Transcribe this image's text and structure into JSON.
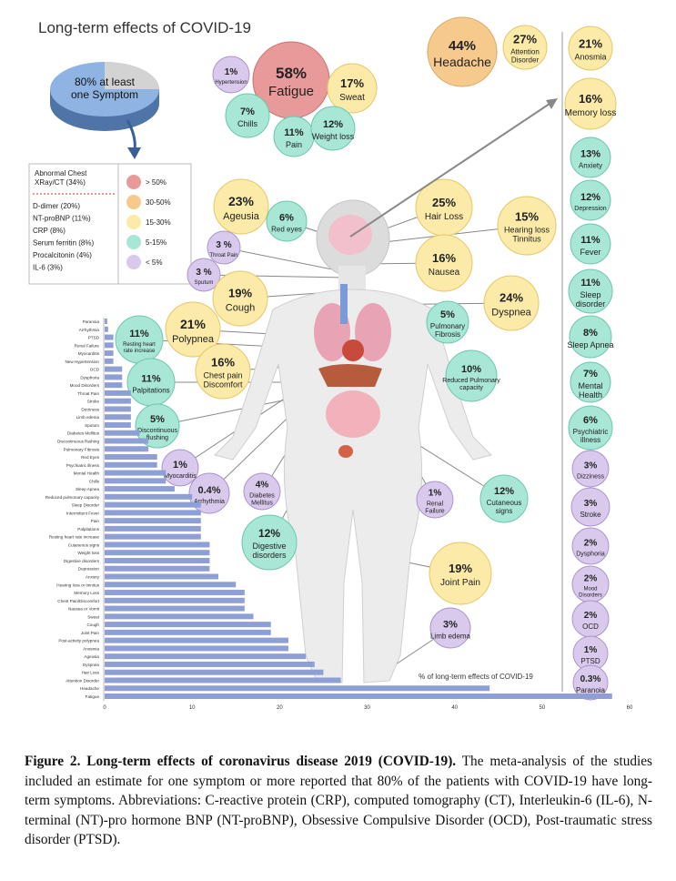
{
  "title": "Long-term effects of COVID-19",
  "pie": {
    "label": "80% at least one Symptom",
    "value": 80
  },
  "legend": {
    "lab_title": "Abnormal Chest XRay/CT (34%)",
    "lab_items": [
      "D-dimer (20%)",
      "NT-proBNP (11%)",
      "CRP (8%)",
      "Serum ferritin (8%)",
      "Procalcitonin (4%)",
      "IL-6 (3%)"
    ],
    "bins": [
      {
        "label": "> 50%",
        "color": "#e89a9a"
      },
      {
        "label": "30-50%",
        "color": "#f6c98c"
      },
      {
        "label": "15-30%",
        "color": "#fbeaa8"
      },
      {
        "label": "5-15%",
        "color": "#a8e6d6"
      },
      {
        "label": "< 5%",
        "color": "#d9c9ec"
      }
    ]
  },
  "bubbles": [
    {
      "pct": "44%",
      "label": "Headache"
    },
    {
      "pct": "27%",
      "label": "Attention Disorder"
    },
    {
      "pct": "21%",
      "label": "Anosmia"
    },
    {
      "pct": "58%",
      "label": "Fatigue"
    },
    {
      "pct": "1%",
      "label": "Hypertension"
    },
    {
      "pct": "17%",
      "label": "Sweat"
    },
    {
      "pct": "7%",
      "label": "Chills"
    },
    {
      "pct": "11%",
      "label": "Pain"
    },
    {
      "pct": "12%",
      "label": "Weight loss"
    },
    {
      "pct": "16%",
      "label": "Memory loss"
    },
    {
      "pct": "13%",
      "label": "Anxiety"
    },
    {
      "pct": "12%",
      "label": "Depression"
    },
    {
      "pct": "11%",
      "label": "Fever"
    },
    {
      "pct": "11%",
      "label": "Sleep disorder"
    },
    {
      "pct": "8%",
      "label": "Sleep Apnea"
    },
    {
      "pct": "7%",
      "label": "Mental Health"
    },
    {
      "pct": "6%",
      "label": "Psychiatric illness"
    },
    {
      "pct": "3%",
      "label": "Dizziness"
    },
    {
      "pct": "3%",
      "label": "Stroke"
    },
    {
      "pct": "2%",
      "label": "Dysphoria"
    },
    {
      "pct": "2%",
      "label": "Mood Disorders"
    },
    {
      "pct": "2%",
      "label": "OCD"
    },
    {
      "pct": "1%",
      "label": "PTSD"
    },
    {
      "pct": "0.3%",
      "label": "Paranoia"
    },
    {
      "pct": "23%",
      "label": "Ageusia"
    },
    {
      "pct": "6%",
      "label": "Red eyes"
    },
    {
      "pct": "25%",
      "label": "Hair Loss"
    },
    {
      "pct": "15%",
      "label": "Hearing loss Tinnitus"
    },
    {
      "pct": "3 %",
      "label": "Throat Pain"
    },
    {
      "pct": "3 %",
      "label": "Sputum"
    },
    {
      "pct": "16%",
      "label": "Nausea"
    },
    {
      "pct": "19%",
      "label": "Cough"
    },
    {
      "pct": "24%",
      "label": "Dyspnea"
    },
    {
      "pct": "21%",
      "label": "Polypnea"
    },
    {
      "pct": "5%",
      "label": "Pulmonary Fibrosis"
    },
    {
      "pct": "11%",
      "label": "Resting heart rate increase"
    },
    {
      "pct": "16%",
      "label": "Chest pain Discomfort"
    },
    {
      "pct": "10%",
      "label": "Reduced Pulmonary capacity"
    },
    {
      "pct": "11%",
      "label": "Palpitations"
    },
    {
      "pct": "5%",
      "label": "Discontinuous flushing"
    },
    {
      "pct": "1%",
      "label": "Myocarditis"
    },
    {
      "pct": "0.4%",
      "label": "Arrhythmia"
    },
    {
      "pct": "4%",
      "label": "Diabetes Mellitus"
    },
    {
      "pct": "1%",
      "label": "Renal Failure"
    },
    {
      "pct": "12%",
      "label": "Cutaneous signs"
    },
    {
      "pct": "12%",
      "label": "Digestive disorders"
    },
    {
      "pct": "19%",
      "label": "Joint Pain"
    },
    {
      "pct": "3%",
      "label": "Limb edema"
    }
  ],
  "chart_data": {
    "type": "bar",
    "orientation": "horizontal",
    "annotation": "% of long-term effects of COVID-19",
    "xlim": [
      0,
      60
    ],
    "xticks": [
      0,
      10,
      20,
      30,
      40,
      50,
      60
    ],
    "categories": [
      "Paranoia",
      "Arrhythmia",
      "PTSD",
      "Renal Failure",
      "Myocarditis",
      "New Hypertension",
      "OCD",
      "Dysphoria",
      "Mood Disorders",
      "Throat Pain",
      "Stroke",
      "Dizziness",
      "Limb edema",
      "Sputum",
      "Diabetes Mellitus",
      "Discontinuous flushing",
      "Pulmonary Fibrosis",
      "Red Eyes",
      "Psychiatric illness",
      "Mental Health",
      "Chills",
      "Sleep Apnea",
      "Reduced pulmonary capacity",
      "Sleep Disorder",
      "Intermittent Fever",
      "Pain",
      "Palpitations",
      "Resting heart rate increase",
      "Cutaneous signs",
      "Weight loss",
      "Digestive disorders",
      "Depression",
      "Anxiety",
      "Hearing loss or tinnitus",
      "Memory Loss",
      "Chest Pain/Discomfort",
      "Nausea or Vomit",
      "Sweat",
      "Cough",
      "Joint Pain",
      "Post-activity polypnea",
      "Anosmia",
      "Ageusia",
      "Dyspnea",
      "Hair Loss",
      "Attention Disorder",
      "Headache",
      "Fatigue"
    ],
    "values": [
      0.3,
      0.4,
      1,
      1,
      1,
      1,
      2,
      2,
      2,
      3,
      3,
      3,
      3,
      3,
      4,
      5,
      5,
      6,
      6,
      7,
      7,
      8,
      10,
      11,
      11,
      11,
      11,
      11,
      12,
      12,
      12,
      12,
      13,
      15,
      16,
      16,
      16,
      17,
      19,
      19,
      21,
      21,
      23,
      24,
      25,
      27,
      44,
      58
    ]
  },
  "caption": {
    "bold": "Figure 2. Long-term effects of coronavirus disease 2019 (COVID-19).",
    "text": " The meta-analysis of the studies included an estimate for one symptom or more reported that 80% of the patients with COVID-19 have long-term symptoms. Abbreviations: C-reactive protein (CRP), computed tomography (CT), Interleukin-6 (IL-6), N-terminal (NT)-pro hormone BNP (NT-proBNP), Obsessive Compulsive Disorder (OCD), Post-traumatic stress disorder (PTSD)."
  }
}
